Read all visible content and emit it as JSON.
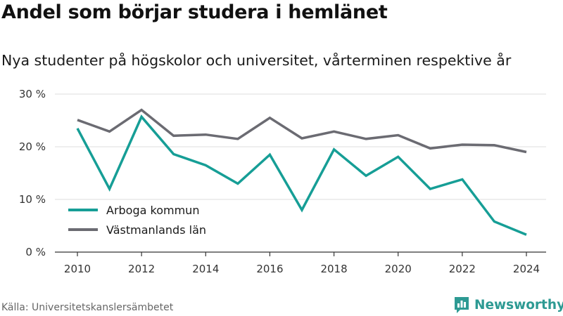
{
  "title": "Andel som börjar studera i hemlänet",
  "subtitle": "Nya studenter på högskolor och universitet, vårterminen respektive år",
  "source": "Källa: Universitetskanslersämbetet",
  "brand": {
    "name": "Newsworthy",
    "logo_icon": "bar-chart-badge-icon",
    "color": "#2d9a93"
  },
  "chart_data": {
    "type": "line",
    "x": [
      2010,
      2011,
      2012,
      2013,
      2014,
      2015,
      2016,
      2017,
      2018,
      2019,
      2020,
      2021,
      2022,
      2023,
      2024
    ],
    "series": [
      {
        "name": "Arboga kommun",
        "color": "#169e96",
        "values": [
          23.5,
          12.0,
          25.7,
          18.6,
          16.5,
          13.0,
          18.5,
          8.0,
          19.5,
          14.5,
          18.1,
          12.0,
          13.8,
          5.8,
          3.3
        ]
      },
      {
        "name": "Västmanlands län",
        "color": "#6b6b72",
        "values": [
          25.1,
          22.9,
          27.0,
          22.1,
          22.3,
          21.5,
          25.5,
          21.6,
          22.9,
          21.5,
          22.2,
          19.7,
          20.4,
          20.3,
          19.0
        ]
      }
    ],
    "ylim": [
      0,
      30
    ],
    "yticks": [
      0,
      10,
      20,
      30
    ],
    "ytick_labels": [
      "0 %",
      "10 %",
      "20 %",
      "30 %"
    ],
    "xticks": [
      2010,
      2012,
      2014,
      2016,
      2018,
      2020,
      2022,
      2024
    ],
    "xtick_labels": [
      "2010",
      "2012",
      "2014",
      "2016",
      "2018",
      "2020",
      "2022",
      "2024"
    ],
    "xlabel": "",
    "ylabel": "",
    "grid": true,
    "legend_position": "bottom-left"
  }
}
